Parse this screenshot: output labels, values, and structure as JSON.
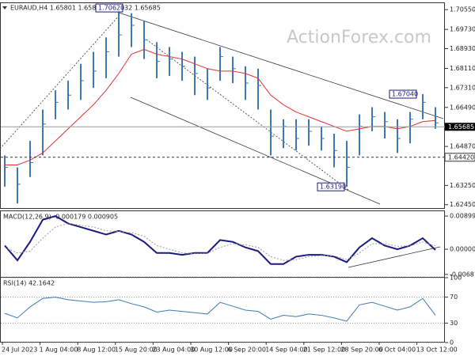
{
  "chart_data": [
    {
      "type": "ohlc",
      "title": "EURAUD,H4  1.65801 1.65833 1.65632 1.65685",
      "watermark": "ActionForex.com",
      "color": "#3f78b0",
      "ma_color": "#e03030",
      "ylim": [
        1.6231,
        1.7082
      ],
      "yticks": [
        {
          "value": 1.7055,
          "label": "1.70550"
        },
        {
          "value": 1.6973,
          "label": "1.69730"
        },
        {
          "value": 1.6893,
          "label": "1.68930"
        },
        {
          "value": 1.6811,
          "label": "1.68110"
        },
        {
          "value": 1.6731,
          "label": "1.67310"
        },
        {
          "value": 1.6649,
          "label": "1.66490"
        },
        {
          "value": 1.6487,
          "label": "1.64870"
        },
        {
          "value": 1.6325,
          "label": "1.63250"
        },
        {
          "value": 1.6245,
          "label": "1.62450"
        }
      ],
      "high": [
        1.645,
        1.64,
        1.651,
        1.664,
        1.672,
        1.676,
        1.683,
        1.688,
        1.694,
        1.7062,
        1.704,
        1.701,
        1.692,
        1.69,
        1.688,
        1.686,
        1.681,
        1.69,
        1.686,
        1.682,
        1.681,
        1.664,
        1.66,
        1.66,
        1.66,
        1.657,
        1.654,
        1.651,
        1.662,
        1.665,
        1.663,
        1.66,
        1.663,
        1.6704,
        1.665
      ],
      "low": [
        1.632,
        1.625,
        1.636,
        1.645,
        1.66,
        1.664,
        1.668,
        1.673,
        1.677,
        1.686,
        1.69,
        1.685,
        1.677,
        1.678,
        1.676,
        1.67,
        1.668,
        1.676,
        1.675,
        1.668,
        1.664,
        1.645,
        1.648,
        1.647,
        1.649,
        1.647,
        1.64,
        1.6319,
        1.645,
        1.655,
        1.652,
        1.646,
        1.65,
        1.66,
        1.656
      ],
      "close": [
        1.64,
        1.633,
        1.642,
        1.658,
        1.667,
        1.67,
        1.676,
        1.68,
        1.688,
        1.695,
        1.699,
        1.693,
        1.684,
        1.685,
        1.682,
        1.679,
        1.673,
        1.686,
        1.681,
        1.675,
        1.674,
        1.653,
        1.657,
        1.652,
        1.655,
        1.652,
        1.647,
        1.64,
        1.657,
        1.661,
        1.659,
        1.652,
        1.66,
        1.667,
        1.6585
      ],
      "ma": [
        1.641,
        1.641,
        1.643,
        1.646,
        1.651,
        1.656,
        1.661,
        1.666,
        1.672,
        1.679,
        1.687,
        1.689,
        1.687,
        1.686,
        1.685,
        1.683,
        1.681,
        1.68,
        1.68,
        1.679,
        1.677,
        1.67,
        1.666,
        1.663,
        1.661,
        1.659,
        1.657,
        1.655,
        1.656,
        1.657,
        1.657,
        1.656,
        1.657,
        1.659,
        1.6595
      ],
      "annotations": [
        {
          "value": 1.7062,
          "label": "1.70620"
        },
        {
          "value": 1.6704,
          "label": "1.67040"
        },
        {
          "value": 1.6319,
          "label": "1.63190"
        }
      ],
      "current_price": {
        "value": 1.65685,
        "label": "1.65685"
      },
      "level": {
        "value": 1.6442,
        "label": "1.64420"
      }
    },
    {
      "type": "line",
      "title": "MACD(12,26,9) -0.000179 0.000905",
      "ylim": [
        -0.0077,
        0.0103
      ],
      "yticks": [
        0.008996,
        {
          "value": 0,
          "label": "0.000000"
        },
        -0.006816
      ],
      "series": [
        {
          "color": "#1a1a80",
          "width": 2,
          "values": [
            0.001,
            -0.003,
            0.002,
            0.008,
            0.009,
            0.007,
            0.006,
            0.005,
            0.004,
            0.005,
            0.004,
            0.002,
            -0.001,
            -0.001,
            -0.0015,
            -0.001,
            -0.001,
            0.0025,
            0.002,
            0.0005,
            -0.0005,
            -0.004,
            -0.004,
            -0.002,
            -0.0015,
            -0.0015,
            -0.002,
            -0.0035,
            0.0005,
            0.003,
            0.001,
            0,
            0.001,
            0.003,
            -0.0002
          ]
        },
        {
          "color": "#999999",
          "width": 1,
          "dashed": true,
          "values": [
            0.0005,
            -0.001,
            -0.0005,
            0.003,
            0.006,
            0.007,
            0.0065,
            0.006,
            0.005,
            0.0048,
            0.0045,
            0.0035,
            0.001,
            0,
            -0.001,
            -0.0012,
            -0.0011,
            0.0005,
            0.0015,
            0.0012,
            0.0005,
            -0.002,
            -0.003,
            -0.0028,
            -0.002,
            -0.0017,
            -0.0018,
            -0.0028,
            -0.001,
            0.0015,
            0.0015,
            0.0008,
            0.0009,
            0.002,
            0.0009
          ]
        }
      ]
    },
    {
      "type": "line",
      "title": "RSI(14) 42.1642",
      "ylim": [
        0,
        100
      ],
      "yticks": [
        100,
        70,
        30,
        0
      ],
      "grid": true,
      "series": [
        {
          "color": "#3f78b0",
          "width": 1,
          "values": [
            45,
            38,
            55,
            68,
            70,
            66,
            64,
            62,
            63,
            66,
            60,
            55,
            47,
            50,
            48,
            46,
            44,
            62,
            56,
            50,
            48,
            36,
            42,
            40,
            44,
            42,
            38,
            33,
            58,
            62,
            56,
            50,
            55,
            68,
            42.16
          ]
        }
      ],
      "x_labels": [
        "24 Jul 2023",
        "1 Aug 04:00",
        "8 Aug 12:00",
        "15 Aug 20:00",
        "23 Aug 04:00",
        "30 Aug 12:00",
        "6 Sep 20:00",
        "14 Sep 04:00",
        "21 Sep 12:00",
        "28 Sep 20:00",
        "6 Oct 04:00",
        "13 Oct 12:00"
      ]
    }
  ]
}
